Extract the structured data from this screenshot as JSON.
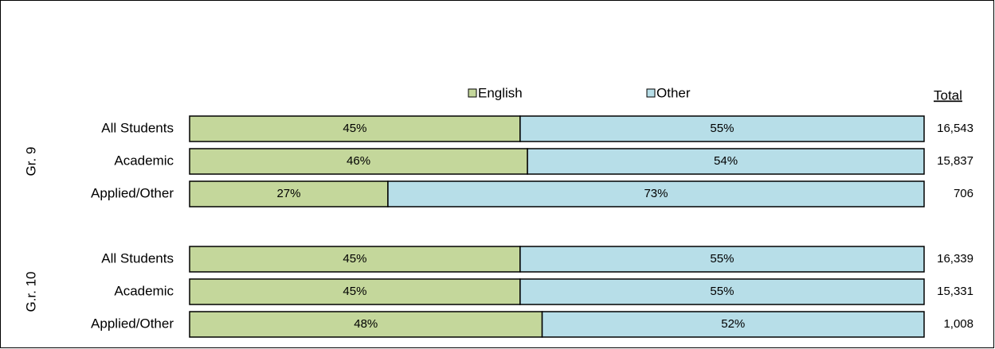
{
  "chart_data": {
    "type": "bar",
    "orientation": "horizontal",
    "stacked": true,
    "xlim": [
      0,
      100
    ],
    "legend": "top",
    "series": [
      {
        "name": "English",
        "color": "#c4d79b"
      },
      {
        "name": "Other",
        "color": "#b7dee8"
      }
    ],
    "total_header": "Total",
    "groups": [
      {
        "name": "Gr. 9",
        "categories": [
          "All Students",
          "Academic",
          "Applied/Other"
        ],
        "series": [
          {
            "values": [
              45,
              46,
              27
            ],
            "value_labels": [
              "45%",
              "46%",
              "27%"
            ]
          },
          {
            "values": [
              55,
              54,
              73
            ],
            "value_labels": [
              "55%",
              "54%",
              "73%"
            ]
          }
        ],
        "totals": {
          "values": [
            16543,
            15837,
            706
          ],
          "value_labels": [
            "16,543",
            "15,837",
            "706"
          ]
        }
      },
      {
        "name": "G.r. 10",
        "categories": [
          "All Students",
          "Academic",
          "Applied/Other"
        ],
        "series": [
          {
            "values": [
              45,
              45,
              48
            ],
            "value_labels": [
              "45%",
              "45%",
              "48%"
            ]
          },
          {
            "values": [
              55,
              55,
              52
            ],
            "value_labels": [
              "55%",
              "55%",
              "52%"
            ]
          }
        ],
        "totals": {
          "values": [
            16339,
            15331,
            1008
          ],
          "value_labels": [
            "16,339",
            "15,331",
            "1,008"
          ]
        }
      }
    ]
  }
}
